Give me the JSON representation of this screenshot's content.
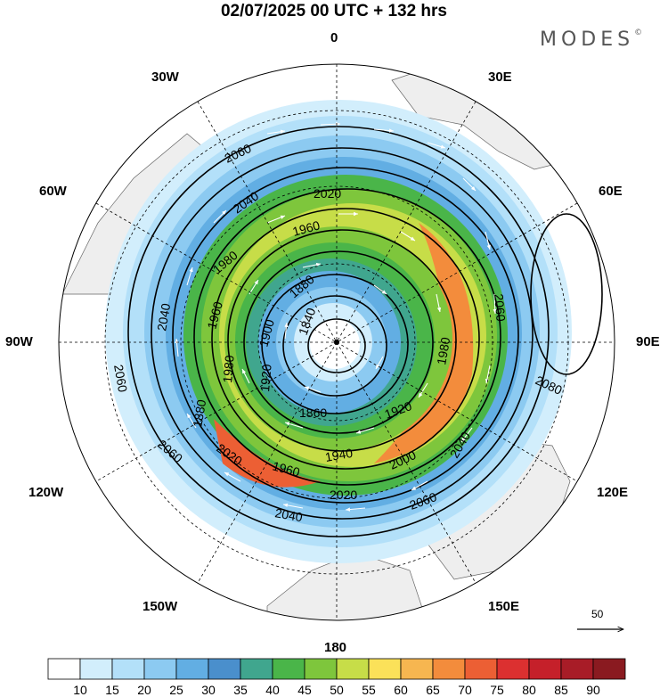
{
  "title": "02/07/2025  00 UTC  + 132 hrs",
  "logo": {
    "text": "MODES",
    "mark": "©"
  },
  "longitude_labels": {
    "top": "0",
    "bottom": "180",
    "left": "90W",
    "right": "90E",
    "upper_left": "30W",
    "upper_right": "30E",
    "left_upper": "60W",
    "right_upper": "60E",
    "left_lower": "120W",
    "right_lower": "120E",
    "lower_left": "150W",
    "lower_right": "150E"
  },
  "contour_labels": [
    "2060",
    "2040",
    "2020",
    "1960",
    "1980",
    "1880",
    "1840",
    "1900",
    "1960",
    "2040",
    "2060",
    "2060",
    "2020",
    "1960",
    "1940",
    "1920",
    "2000",
    "2040",
    "2060",
    "2040",
    "2020",
    "1860",
    "1980",
    "2060",
    "2080",
    "1880",
    "1980",
    "1920"
  ],
  "reference_vector": {
    "label": "50"
  },
  "colorbar": {
    "colors": [
      "#ffffff",
      "#d2eefc",
      "#b3e0f9",
      "#8ccaf1",
      "#62aee3",
      "#4a8fcc",
      "#40a68e",
      "#4ab549",
      "#7ec63c",
      "#c7dd48",
      "#fbe159",
      "#f6b650",
      "#f38c3c",
      "#ec5f34",
      "#dc3030",
      "#c5202a",
      "#a81c27",
      "#8a1a20"
    ],
    "labels": [
      "10",
      "15",
      "20",
      "25",
      "30",
      "35",
      "40",
      "45",
      "50",
      "55",
      "60",
      "65",
      "70",
      "75",
      "80",
      "85",
      "90"
    ]
  }
}
